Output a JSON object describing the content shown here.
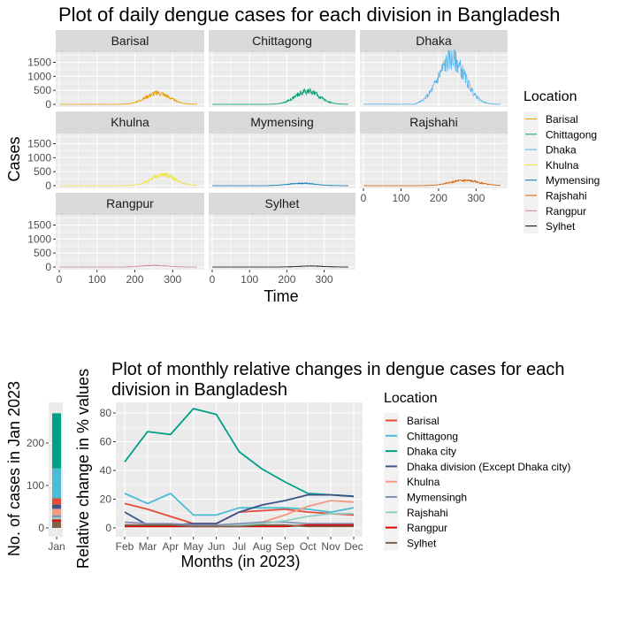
{
  "chart_data": [
    {
      "type": "line",
      "facet": true,
      "title": "Plot of daily dengue cases for each division in Bangladesh",
      "xlabel": "Time",
      "ylabel": "Cases",
      "xlim": [
        0,
        365
      ],
      "ylim": [
        0,
        1800
      ],
      "xticks": [
        0,
        100,
        200,
        300
      ],
      "yticks": [
        0,
        500,
        1000,
        1500
      ],
      "legend_title": "Location",
      "legend_position": "right",
      "grid": true,
      "series": [
        {
          "name": "Barisal",
          "color": "#E69F00",
          "peak_day": 260,
          "peak_cases": 420,
          "spread": 45,
          "start_day": 130
        },
        {
          "name": "Chittagong",
          "color": "#009E73",
          "peak_day": 255,
          "peak_cases": 480,
          "spread": 45,
          "start_day": 140
        },
        {
          "name": "Dhaka",
          "color": "#56B4E9",
          "peak_day": 235,
          "peak_cases": 1650,
          "spread": 50,
          "start_day": 140
        },
        {
          "name": "Khulna",
          "color": "#F0E442",
          "peak_day": 275,
          "peak_cases": 400,
          "spread": 45,
          "start_day": 150
        },
        {
          "name": "Mymensing",
          "color": "#0072B2",
          "peak_day": 240,
          "peak_cases": 90,
          "spread": 50,
          "start_day": 150
        },
        {
          "name": "Rajshahi",
          "color": "#D55E00",
          "peak_day": 270,
          "peak_cases": 190,
          "spread": 55,
          "start_day": 150
        },
        {
          "name": "Rangpur",
          "color": "#CC79A7",
          "peak_day": 250,
          "peak_cases": 60,
          "spread": 45,
          "start_day": 170
        },
        {
          "name": "Sylhet",
          "color": "#000000",
          "peak_day": 265,
          "peak_cases": 35,
          "spread": 45,
          "start_day": 170
        }
      ]
    },
    {
      "type": "line",
      "title_lines": [
        "Plot of monthly relative changes in dengue cases for each",
        "division in Bangladesh"
      ],
      "xlabel": "Months (in 2023)",
      "ylabel": "Relative change in % values",
      "categories": [
        "Feb",
        "Mar",
        "Apr",
        "May",
        "Jun",
        "Jul",
        "Aug",
        "Sep",
        "Oct",
        "Nov",
        "Dec"
      ],
      "ylim": [
        -5,
        90
      ],
      "yticks": [
        0,
        20,
        40,
        60,
        80
      ],
      "legend_title": "Location",
      "legend_position": "right",
      "grid": true,
      "series": [
        {
          "name": "Barisal",
          "color": "#E64B35",
          "values": [
            17,
            13,
            8,
            3,
            3,
            11,
            12,
            13,
            11,
            10,
            9
          ]
        },
        {
          "name": "Chittagong",
          "color": "#4DBBD5",
          "values": [
            24,
            17,
            24,
            9,
            9,
            14,
            14,
            14,
            13,
            11,
            14
          ]
        },
        {
          "name": "Dhaka city",
          "color": "#00A087",
          "values": [
            46,
            67,
            65,
            83,
            79,
            53,
            41,
            32,
            24,
            23,
            22
          ]
        },
        {
          "name": "Dhaka division (Except Dhaka city)",
          "color": "#3C5488",
          "values": [
            11,
            2,
            2,
            3,
            3,
            11,
            16,
            19,
            23,
            23,
            22
          ]
        },
        {
          "name": "Khulna",
          "color": "#F39B7F",
          "values": [
            2,
            2,
            2,
            1,
            1,
            2,
            4,
            9,
            15,
            19,
            18
          ]
        },
        {
          "name": "Mymensingh",
          "color": "#8491B4",
          "values": [
            4,
            3,
            3,
            2,
            2,
            3,
            4,
            4,
            3,
            3,
            3
          ]
        },
        {
          "name": "Rajshahi",
          "color": "#91D1C2",
          "values": [
            1,
            1,
            1,
            1,
            1,
            2,
            3,
            5,
            8,
            10,
            10
          ]
        },
        {
          "name": "Rangpur",
          "color": "#DC0000",
          "values": [
            1,
            1,
            1,
            1,
            1,
            1,
            1,
            1,
            2,
            2,
            2
          ]
        },
        {
          "name": "Sylhet",
          "color": "#7E6148",
          "values": [
            2,
            2,
            2,
            1,
            1,
            1,
            2,
            2,
            1,
            1,
            1
          ]
        }
      ]
    },
    {
      "type": "bar",
      "stacked": true,
      "ylabel": "No. of cases in Jan 2023",
      "categories": [
        "Jan"
      ],
      "ylim": [
        0,
        300
      ],
      "yticks": [
        0,
        100,
        200
      ],
      "series": [
        {
          "name": "Sylhet",
          "color": "#7E6148",
          "values": [
            15
          ]
        },
        {
          "name": "Rangpur",
          "color": "#DC0000",
          "values": [
            5
          ]
        },
        {
          "name": "Rajshahi",
          "color": "#91D1C2",
          "values": [
            5
          ]
        },
        {
          "name": "Mymensingh",
          "color": "#8491B4",
          "values": [
            5
          ]
        },
        {
          "name": "Khulna",
          "color": "#F39B7F",
          "values": [
            15
          ]
        },
        {
          "name": "Dhaka division (Except Dhaka city)",
          "color": "#3C5488",
          "values": [
            10
          ]
        },
        {
          "name": "Barisal",
          "color": "#E64B35",
          "values": [
            15
          ]
        },
        {
          "name": "Chittagong",
          "color": "#4DBBD5",
          "values": [
            70
          ]
        },
        {
          "name": "Dhaka city",
          "color": "#00A087",
          "values": [
            130
          ]
        }
      ]
    }
  ]
}
